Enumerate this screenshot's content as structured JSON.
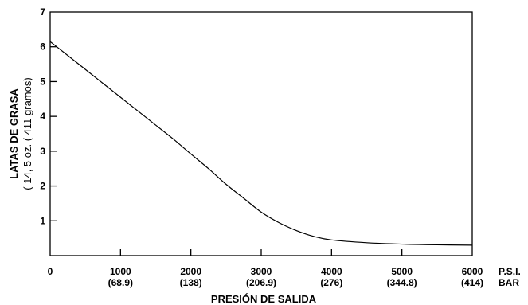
{
  "chart_data": {
    "type": "line",
    "ylabel": "LATAS DE GRASA",
    "ylabel_sub": "( 14, 5 oz. ( 411 gramos)",
    "xlabel": "PRESIÓN DE SALIDA",
    "x_unit_psi": "P.S.I.",
    "x_unit_bar": "BAR",
    "xlim": [
      0,
      6000
    ],
    "ylim": [
      0,
      7
    ],
    "x_ticks": [
      "0",
      "1000",
      "2000",
      "3000",
      "4000",
      "5000",
      "6000"
    ],
    "x_ticks_bar": [
      "",
      "(68.9)",
      "(138)",
      "(206.9)",
      "(276)",
      "(344.8)",
      "(414)"
    ],
    "y_ticks": [
      "1",
      "2",
      "3",
      "4",
      "5",
      "6",
      "7"
    ],
    "grid": false,
    "series": [
      {
        "x": [
          0,
          250,
          500,
          750,
          1000,
          1250,
          1500,
          1750,
          2000,
          2250,
          2500,
          2750,
          3000,
          3250,
          3500,
          3750,
          4000,
          4500,
          5000,
          5500,
          6000
        ],
        "y": [
          6.15,
          5.75,
          5.35,
          4.95,
          4.55,
          4.15,
          3.75,
          3.35,
          2.92,
          2.5,
          2.05,
          1.65,
          1.25,
          0.95,
          0.72,
          0.55,
          0.45,
          0.37,
          0.33,
          0.31,
          0.3
        ]
      }
    ]
  }
}
